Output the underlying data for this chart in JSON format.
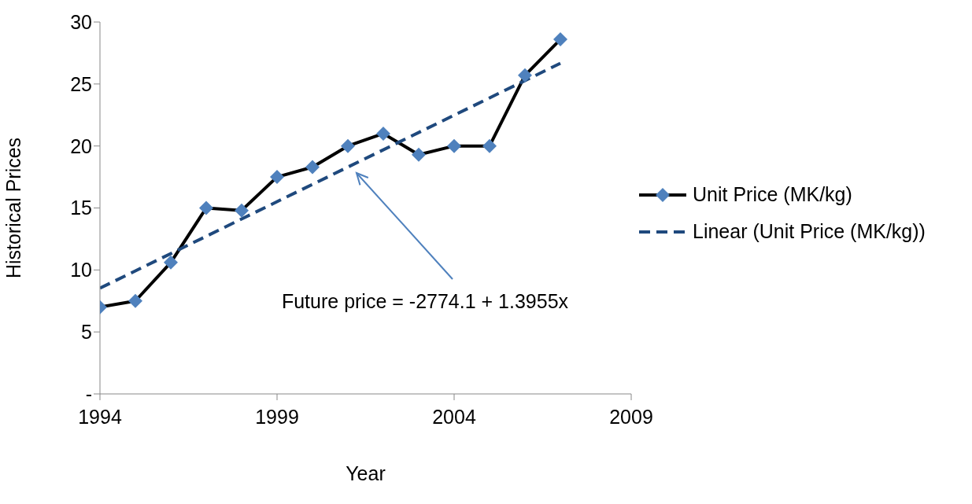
{
  "chart_data": {
    "type": "line",
    "xlabel": "Year",
    "ylabel": "Historical Prices",
    "x": [
      1994,
      1995,
      1996,
      1997,
      1998,
      1999,
      2000,
      2001,
      2002,
      2003,
      2004,
      2005,
      2006,
      2007
    ],
    "series": [
      {
        "name": "Unit Price  (MK/kg)",
        "color": "#000000",
        "colors": [
          "#4f81bd",
          "#4f81bd",
          "#4f81bd",
          "#4f81bd",
          "#4f81bd",
          "#4f81bd",
          "#4f81bd",
          "#4f81bd",
          "#4f81bd",
          "#4f81bd",
          "#4f81bd",
          "#4f81bd",
          "#4f81bd",
          "#4f81bd"
        ],
        "marker": "diamond",
        "line_style": "solid",
        "values": [
          7.0,
          7.5,
          10.6,
          15.0,
          14.8,
          17.5,
          18.3,
          20.0,
          21.0,
          19.3,
          20.0,
          20.0,
          25.7,
          28.6
        ]
      },
      {
        "name": "Linear (Unit Price  (MK/kg))",
        "color": "#1f497d",
        "marker": "none",
        "line_style": "dashed",
        "x": [
          1994,
          2007
        ],
        "values": [
          8.53,
          26.67
        ]
      }
    ],
    "xlim": [
      1994,
      2009
    ],
    "xticks": [
      1994,
      1999,
      2004,
      2009
    ],
    "ylim": [
      0,
      30
    ],
    "yticks": [
      {
        "value": 0,
        "label": "-"
      },
      5,
      10,
      15,
      20,
      25,
      30
    ],
    "grid": false,
    "legend": "right",
    "annotations": [
      "Future price = -2774.1 + 1.3955x"
    ]
  }
}
